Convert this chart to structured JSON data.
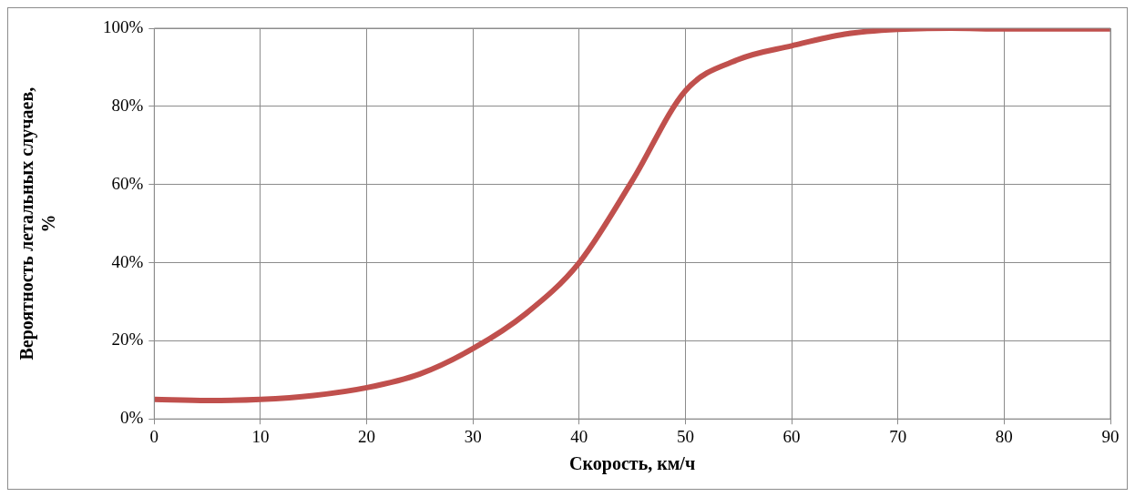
{
  "chart_data": {
    "type": "line",
    "xlabel": "Скорость, км/ч",
    "ylabel": "Вероятность летальных случаев, %",
    "x": [
      0,
      5,
      10,
      15,
      20,
      25,
      30,
      35,
      40,
      45,
      50,
      55,
      60,
      65,
      70,
      75,
      80,
      85,
      90
    ],
    "series": [
      {
        "color": "#c0504d",
        "values": [
          5,
          4.7,
          5,
          6,
          8,
          11.5,
          18,
          27,
          40,
          61,
          84,
          92,
          95.5,
          98.5,
          99.7,
          100,
          99.8,
          99.8,
          99.8
        ]
      }
    ],
    "xlim": [
      0,
      90
    ],
    "xticks": [
      0,
      10,
      20,
      30,
      40,
      50,
      60,
      70,
      80,
      90
    ],
    "ylim": [
      0,
      100
    ],
    "yticks": [
      {
        "value": 0,
        "label": "0%"
      },
      {
        "value": 20,
        "label": "20%"
      },
      {
        "value": 40,
        "label": "40%"
      },
      {
        "value": 60,
        "label": "60%"
      },
      {
        "value": 80,
        "label": "80%"
      },
      {
        "value": 100,
        "label": "100%"
      }
    ],
    "grid": true,
    "legend": false,
    "marker": "none",
    "line_style": "solid"
  }
}
